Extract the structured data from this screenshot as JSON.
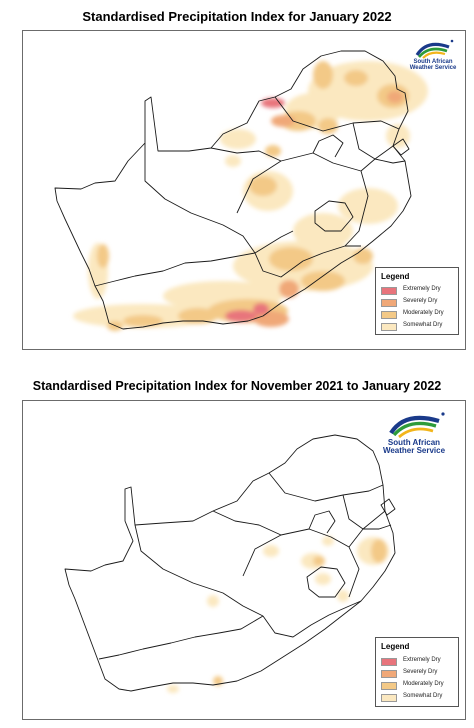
{
  "colors": {
    "extremely_dry": "#e8747c",
    "severely_dry": "#f0a878",
    "moderately_dry": "#f3c987",
    "somewhat_dry": "#fbe8c0"
  },
  "maps": [
    {
      "title": "Standardised Precipitation Index for January 2022",
      "logo": {
        "line1": "South African",
        "line2": "Weather Service"
      },
      "legend": {
        "title": "Legend",
        "items": [
          {
            "label": "Extremely Dry",
            "color": "#e8747c"
          },
          {
            "label": "Severely Dry",
            "color": "#f0a878"
          },
          {
            "label": "Moderately Dry",
            "color": "#f3c987"
          },
          {
            "label": "Somewhat Dry",
            "color": "#fbe8c0"
          }
        ]
      }
    },
    {
      "title": "Standardised Precipitation Index for November 2021 to January 2022",
      "logo": {
        "line1": "South African",
        "line2": "Weather Service"
      },
      "legend": {
        "title": "Legend",
        "items": [
          {
            "label": "Extremely Dry",
            "color": "#e8747c"
          },
          {
            "label": "Severely Dry",
            "color": "#f0a878"
          },
          {
            "label": "Moderately Dry",
            "color": "#f3c987"
          },
          {
            "label": "Somewhat Dry",
            "color": "#fbe8c0"
          }
        ]
      }
    }
  ]
}
